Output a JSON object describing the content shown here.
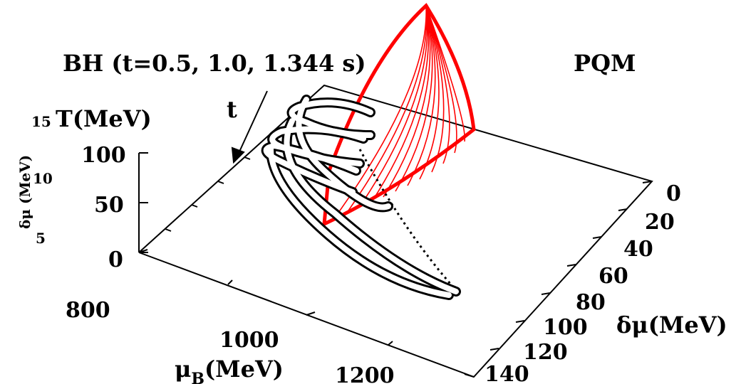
{
  "chart_data": {
    "type": "3d-surface-line",
    "title": "PQM",
    "annotation": "BH (t=0.5, 1.0, 1.344 s)",
    "arrow_label": "t",
    "x_axis": {
      "label": "μB(MeV)",
      "label_main": "μ",
      "label_sub": "B",
      "label_rest": "(MeV)",
      "ticks": [
        "800",
        "1000",
        "1200"
      ],
      "range": [
        800,
        1200
      ]
    },
    "y_axis": {
      "label": "δμ(MeV)",
      "ticks": [
        "0",
        "20",
        "40",
        "60",
        "80",
        "100",
        "120",
        "140"
      ],
      "range": [
        0,
        140
      ]
    },
    "z_axis": {
      "label": "T(MeV)",
      "ticks": [
        "0",
        "50",
        "100"
      ],
      "range": [
        0,
        120
      ]
    },
    "colorbar": {
      "label": "δμ (MeV)",
      "ticks": [
        "5",
        "10",
        "15"
      ]
    },
    "series": [
      {
        "points": [
          [
            1060,
            50,
            90
          ],
          [
            1100,
            55,
            72
          ],
          [
            1150,
            65,
            48
          ],
          [
            1190,
            75,
            22
          ],
          [
            1215,
            85,
            5
          ]
        ]
      },
      {
        "points": [
          [
            1040,
            35,
            110
          ],
          [
            1080,
            40,
            88
          ],
          [
            1130,
            50,
            58
          ],
          [
            1175,
            60,
            30
          ],
          [
            1205,
            72,
            10
          ]
        ]
      },
      {
        "points": [
          [
            1020,
            20,
            125
          ],
          [
            1060,
            25,
            100
          ],
          [
            1110,
            35,
            68
          ],
          [
            1160,
            48,
            38
          ],
          [
            1200,
            60,
            14
          ]
        ]
      }
    ],
    "phase_boundary": {
      "color": "#ff0000"
    }
  }
}
